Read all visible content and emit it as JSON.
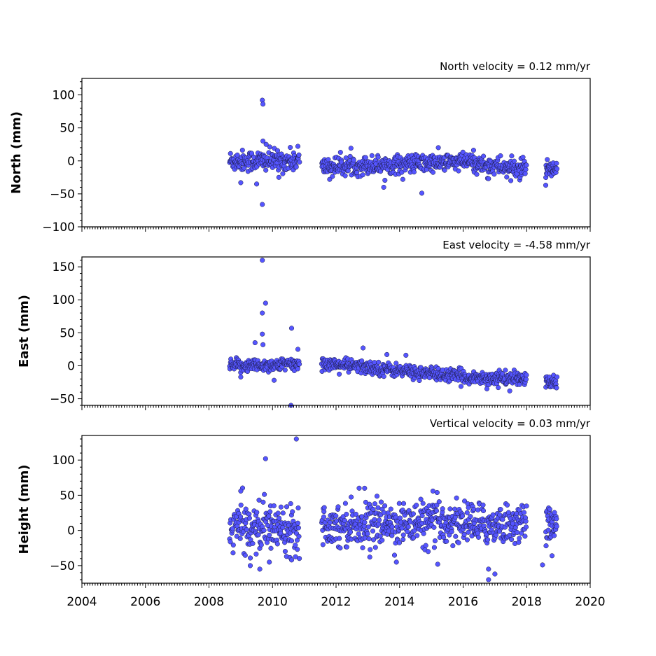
{
  "chart_data": {
    "type": "scatter",
    "colors": {
      "marker_fill": "#5555ff",
      "marker_edge": "#1a1a40"
    },
    "xlim": [
      2004,
      2020
    ],
    "xticks": [
      2004,
      2006,
      2008,
      2010,
      2012,
      2014,
      2016,
      2018,
      2020
    ],
    "xtick_labels": [
      "2004",
      "2006",
      "2008",
      "2010",
      "2012",
      "2014",
      "2016",
      "2018",
      "2020"
    ],
    "grid": false,
    "panels": [
      {
        "id": "north",
        "ylabel": "North (mm)",
        "velocity_label": "North velocity = 0.12 mm/yr",
        "ylim": [
          -100,
          125
        ],
        "yticks": [
          -100,
          -50,
          0,
          50,
          100
        ],
        "ytick_labels": [
          "−100",
          "−50",
          "0",
          "50",
          "100"
        ],
        "segments": [
          {
            "start": 2008.65,
            "end": 2010.85,
            "step": 0.012,
            "trend": [
              0,
              0
            ],
            "noise": 8
          },
          {
            "start": 2011.55,
            "end": 2016.35,
            "step": 0.012,
            "trend": [
              -9,
              -1
            ],
            "noise": 7
          },
          {
            "start": 2016.35,
            "end": 2018.0,
            "step": 0.012,
            "trend": [
              -4,
              -14
            ],
            "noise": 7
          },
          {
            "start": 2018.6,
            "end": 2018.95,
            "step": 0.01,
            "trend": [
              -15,
              -15
            ],
            "noise": 6
          }
        ],
        "outliers": [
          [
            2009.68,
            92
          ],
          [
            2009.7,
            86
          ],
          [
            2009.68,
            -66
          ],
          [
            2009.5,
            -35
          ],
          [
            2009.7,
            30
          ],
          [
            2009.8,
            25
          ],
          [
            2014.7,
            -49
          ],
          [
            2013.5,
            -40
          ],
          [
            2011.8,
            -28
          ],
          [
            2016.8,
            -27
          ],
          [
            2017.5,
            -30
          ],
          [
            2018.65,
            2
          ],
          [
            2018.6,
            -37
          ],
          [
            2010.8,
            22
          ],
          [
            2010.2,
            -25
          ],
          [
            2009.0,
            -33
          ]
        ]
      },
      {
        "id": "east",
        "ylabel": "East (mm)",
        "velocity_label": "East velocity = -4.58 mm/yr",
        "ylim": [
          -60,
          165
        ],
        "yticks": [
          -50,
          0,
          50,
          100,
          150
        ],
        "ytick_labels": [
          "−50",
          "0",
          "50",
          "100",
          "150"
        ],
        "segments": [
          {
            "start": 2008.65,
            "end": 2010.85,
            "step": 0.012,
            "trend": [
              0,
              2
            ],
            "noise": 5
          },
          {
            "start": 2011.55,
            "end": 2016.3,
            "step": 0.012,
            "trend": [
              4,
              -18
            ],
            "noise": 5
          },
          {
            "start": 2016.3,
            "end": 2018.0,
            "step": 0.012,
            "trend": [
              -18,
              -20
            ],
            "noise": 5
          },
          {
            "start": 2018.6,
            "end": 2018.95,
            "step": 0.01,
            "trend": [
              -25,
              -27
            ],
            "noise": 5
          }
        ],
        "outliers": [
          [
            2009.68,
            160
          ],
          [
            2009.78,
            95
          ],
          [
            2009.68,
            80
          ],
          [
            2009.68,
            48
          ],
          [
            2009.45,
            35
          ],
          [
            2009.7,
            32
          ],
          [
            2010.6,
            57
          ],
          [
            2010.58,
            -60
          ],
          [
            2012.85,
            27
          ],
          [
            2013.6,
            17
          ],
          [
            2014.2,
            16
          ],
          [
            2010.8,
            25
          ],
          [
            2009.0,
            -17
          ],
          [
            2010.05,
            -22
          ],
          [
            2016.75,
            -35
          ]
        ]
      },
      {
        "id": "vertical",
        "ylabel": "Height (mm)",
        "velocity_label": "Vertical velocity = 0.03 mm/yr",
        "ylim": [
          -75,
          135
        ],
        "yticks": [
          -50,
          0,
          50,
          100
        ],
        "ytick_labels": [
          "−50",
          "0",
          "50",
          "100"
        ],
        "segments": [
          {
            "start": 2008.65,
            "end": 2010.85,
            "step": 0.012,
            "trend": [
              5,
              5
            ],
            "noise": 17
          },
          {
            "start": 2011.55,
            "end": 2016.35,
            "step": 0.012,
            "trend": [
              8,
              12
            ],
            "noise": 15
          },
          {
            "start": 2016.35,
            "end": 2018.0,
            "step": 0.012,
            "trend": [
              8,
              10
            ],
            "noise": 14
          },
          {
            "start": 2018.6,
            "end": 2018.95,
            "step": 0.01,
            "trend": [
              10,
              10
            ],
            "noise": 12
          }
        ],
        "outliers": [
          [
            2010.75,
            130
          ],
          [
            2009.78,
            102
          ],
          [
            2012.9,
            60
          ],
          [
            2009.0,
            56
          ],
          [
            2015.05,
            56
          ],
          [
            2016.8,
            -70
          ],
          [
            2017.0,
            -62
          ],
          [
            2016.8,
            -55
          ],
          [
            2009.6,
            -55
          ],
          [
            2009.3,
            -50
          ],
          [
            2009.9,
            -45
          ],
          [
            2010.6,
            -42
          ],
          [
            2018.5,
            -49
          ],
          [
            2018.8,
            -36
          ],
          [
            2013.9,
            -45
          ],
          [
            2015.2,
            -48
          ],
          [
            2014.9,
            -30
          ]
        ]
      }
    ]
  }
}
